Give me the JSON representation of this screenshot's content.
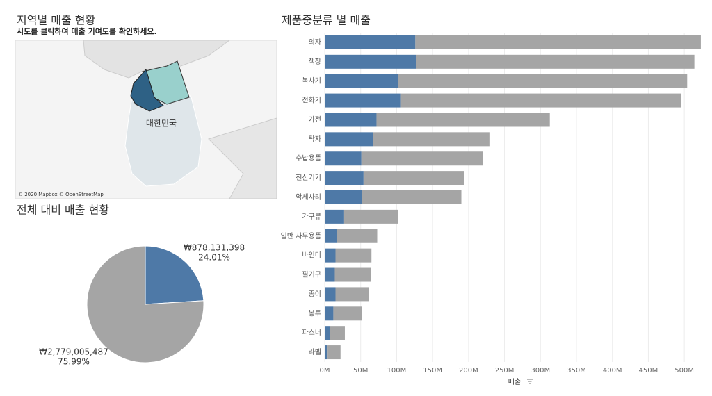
{
  "chart_data": [
    {
      "type": "map",
      "title": "지역별 매출 현황",
      "subtitle": "시도를 클릭하여 매출 기여도를 확인하세요.",
      "place_label": "대한민국",
      "attribution": "© 2020 Mapbox © OpenStreetMap"
    },
    {
      "type": "pie",
      "title": "전체 대비 매출 현황",
      "values": [
        878131398,
        2779005487
      ],
      "value_labels": [
        "₩878,131,398",
        "₩2,779,005,487"
      ],
      "percent_labels": [
        "24.01%",
        "75.99%"
      ],
      "colors": [
        "#4e79a7",
        "#a5a5a5"
      ]
    },
    {
      "type": "bar",
      "orientation": "horizontal",
      "stacked": true,
      "title": "제품중분류 별 매출",
      "x_label": "매출",
      "categories": [
        "의자",
        "책장",
        "복사기",
        "전화기",
        "가전",
        "탁자",
        "수납용품",
        "전산기기",
        "악세사리",
        "가구류",
        "일반 사무용품",
        "바인더",
        "필기구",
        "종이",
        "봉투",
        "파스너",
        "라벨"
      ],
      "series": [
        {
          "color": "#4e79a7",
          "values": [
            126000000,
            127000000,
            102000000,
            106000000,
            72000000,
            67000000,
            51000000,
            54000000,
            52000000,
            27000000,
            17000000,
            15000000,
            14000000,
            15000000,
            12000000,
            7000000,
            4000000
          ]
        },
        {
          "color": "#a5a5a5",
          "values": [
            397000000,
            387000000,
            402000000,
            390000000,
            241000000,
            162000000,
            169000000,
            140000000,
            138000000,
            75000000,
            56000000,
            50000000,
            50000000,
            46000000,
            40000000,
            21000000,
            18000000
          ]
        }
      ],
      "xlim": [
        0,
        525000000
      ],
      "xticks": [
        {
          "value": 0,
          "label": "0M"
        },
        {
          "value": 50000000,
          "label": "50M"
        },
        {
          "value": 100000000,
          "label": "100M"
        },
        {
          "value": 150000000,
          "label": "150M"
        },
        {
          "value": 200000000,
          "label": "200M"
        },
        {
          "value": 250000000,
          "label": "250M"
        },
        {
          "value": 300000000,
          "label": "300M"
        },
        {
          "value": 350000000,
          "label": "350M"
        },
        {
          "value": 400000000,
          "label": "400M"
        },
        {
          "value": 450000000,
          "label": "450M"
        },
        {
          "value": 500000000,
          "label": "500M"
        }
      ],
      "grid": true
    }
  ]
}
